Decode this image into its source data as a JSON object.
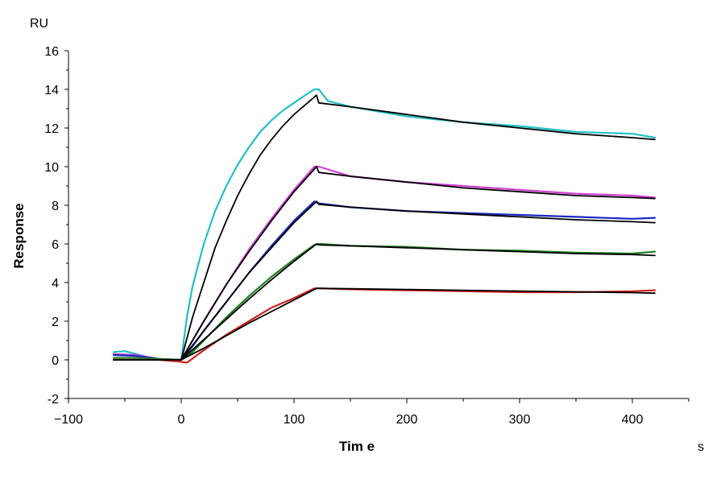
{
  "chart_data": {
    "type": "line",
    "xlabel": "Tim e",
    "ylabel": "Response",
    "x_unit": "s",
    "y_unit": "RU",
    "xlim": [
      -100,
      450
    ],
    "ylim": [
      -2,
      16
    ],
    "x_ticks": [
      -100,
      0,
      100,
      200,
      300,
      400
    ],
    "x_tick_labels": [
      "−100",
      "0",
      "100",
      "200",
      "300",
      "400"
    ],
    "y_ticks": [
      -2,
      0,
      2,
      4,
      6,
      8,
      10,
      12,
      14,
      16
    ],
    "grid": false,
    "legend": "none",
    "series": [
      {
        "color": "#20c0c8",
        "kind": "measured",
        "x": [
          -60,
          -50,
          -40,
          -30,
          -20,
          -10,
          0,
          5,
          10,
          20,
          30,
          40,
          50,
          60,
          70,
          80,
          90,
          100,
          110,
          118,
          122,
          130,
          150,
          200,
          250,
          300,
          350,
          400,
          420
        ],
        "y": [
          0.4,
          0.45,
          0.3,
          0.15,
          0.05,
          0.0,
          0.0,
          2.2,
          3.8,
          6.0,
          7.7,
          9.0,
          10.1,
          11.0,
          11.8,
          12.4,
          12.9,
          13.3,
          13.7,
          14.0,
          14.0,
          13.4,
          13.1,
          12.6,
          12.3,
          12.1,
          11.8,
          11.7,
          11.5
        ]
      },
      {
        "color": "#d040d0",
        "kind": "measured",
        "x": [
          -60,
          -40,
          -20,
          0,
          10,
          20,
          40,
          60,
          80,
          100,
          118,
          122,
          150,
          200,
          250,
          300,
          350,
          400,
          420
        ],
        "y": [
          0.3,
          0.25,
          0.05,
          0.0,
          1.0,
          2.0,
          3.9,
          5.7,
          7.3,
          8.8,
          10.0,
          10.0,
          9.5,
          9.2,
          9.0,
          8.8,
          8.6,
          8.5,
          8.4
        ]
      },
      {
        "color": "#1828c0",
        "kind": "measured",
        "x": [
          -60,
          -40,
          -20,
          0,
          10,
          20,
          40,
          60,
          80,
          100,
          118,
          122,
          150,
          200,
          250,
          300,
          350,
          400,
          420
        ],
        "y": [
          0.25,
          0.2,
          0.05,
          0.0,
          0.7,
          1.5,
          3.0,
          4.5,
          5.9,
          7.2,
          8.2,
          8.1,
          7.9,
          7.7,
          7.6,
          7.5,
          7.4,
          7.3,
          7.35
        ]
      },
      {
        "color": "#208020",
        "kind": "measured",
        "x": [
          -60,
          -40,
          -20,
          0,
          10,
          20,
          40,
          60,
          80,
          100,
          118,
          122,
          150,
          200,
          250,
          300,
          350,
          400,
          420
        ],
        "y": [
          0.1,
          0.1,
          0.05,
          0.0,
          0.4,
          1.0,
          2.2,
          3.3,
          4.3,
          5.2,
          5.95,
          6.0,
          5.9,
          5.85,
          5.7,
          5.65,
          5.55,
          5.5,
          5.6
        ]
      },
      {
        "color": "#d02020",
        "kind": "measured",
        "x": [
          -60,
          -40,
          -20,
          0,
          5,
          20,
          40,
          60,
          80,
          100,
          118,
          122,
          150,
          200,
          250,
          300,
          350,
          400,
          420
        ],
        "y": [
          0.0,
          0.0,
          0.0,
          -0.1,
          -0.15,
          0.5,
          1.3,
          2.0,
          2.7,
          3.2,
          3.7,
          3.7,
          3.65,
          3.6,
          3.55,
          3.5,
          3.5,
          3.55,
          3.6
        ]
      },
      {
        "color": "#000000",
        "kind": "fit",
        "x": [
          -60,
          0,
          10,
          20,
          30,
          40,
          50,
          60,
          70,
          80,
          90,
          100,
          110,
          120,
          122,
          150,
          200,
          250,
          300,
          350,
          400,
          420
        ],
        "y": [
          0.0,
          0.0,
          2.2,
          4.0,
          5.8,
          7.2,
          8.5,
          9.6,
          10.6,
          11.4,
          12.1,
          12.7,
          13.2,
          13.7,
          13.3,
          13.1,
          12.7,
          12.3,
          12.0,
          11.7,
          11.5,
          11.4
        ]
      },
      {
        "color": "#000000",
        "kind": "fit",
        "x": [
          -60,
          0,
          20,
          40,
          60,
          80,
          100,
          120,
          122,
          150,
          200,
          250,
          300,
          350,
          400,
          420
        ],
        "y": [
          0.0,
          0.0,
          2.0,
          3.9,
          5.6,
          7.2,
          8.7,
          10.0,
          9.7,
          9.5,
          9.2,
          8.9,
          8.7,
          8.5,
          8.4,
          8.35
        ]
      },
      {
        "color": "#000000",
        "kind": "fit",
        "x": [
          -60,
          0,
          20,
          40,
          60,
          80,
          100,
          120,
          122,
          150,
          200,
          250,
          300,
          350,
          400,
          420
        ],
        "y": [
          0.0,
          0.0,
          1.5,
          3.0,
          4.5,
          5.8,
          7.1,
          8.2,
          8.05,
          7.9,
          7.7,
          7.55,
          7.4,
          7.25,
          7.15,
          7.1
        ]
      },
      {
        "color": "#000000",
        "kind": "fit",
        "x": [
          -60,
          0,
          20,
          40,
          60,
          80,
          100,
          120,
          122,
          150,
          200,
          250,
          300,
          350,
          400,
          420
        ],
        "y": [
          0.0,
          0.0,
          1.05,
          2.1,
          3.15,
          4.15,
          5.1,
          6.0,
          5.95,
          5.9,
          5.8,
          5.7,
          5.6,
          5.5,
          5.45,
          5.4
        ]
      },
      {
        "color": "#000000",
        "kind": "fit",
        "x": [
          -60,
          0,
          20,
          40,
          60,
          80,
          100,
          120,
          122,
          150,
          200,
          250,
          300,
          350,
          400,
          420
        ],
        "y": [
          0.0,
          0.0,
          0.6,
          1.25,
          1.9,
          2.5,
          3.1,
          3.7,
          3.7,
          3.68,
          3.64,
          3.6,
          3.56,
          3.52,
          3.48,
          3.45
        ]
      }
    ]
  }
}
